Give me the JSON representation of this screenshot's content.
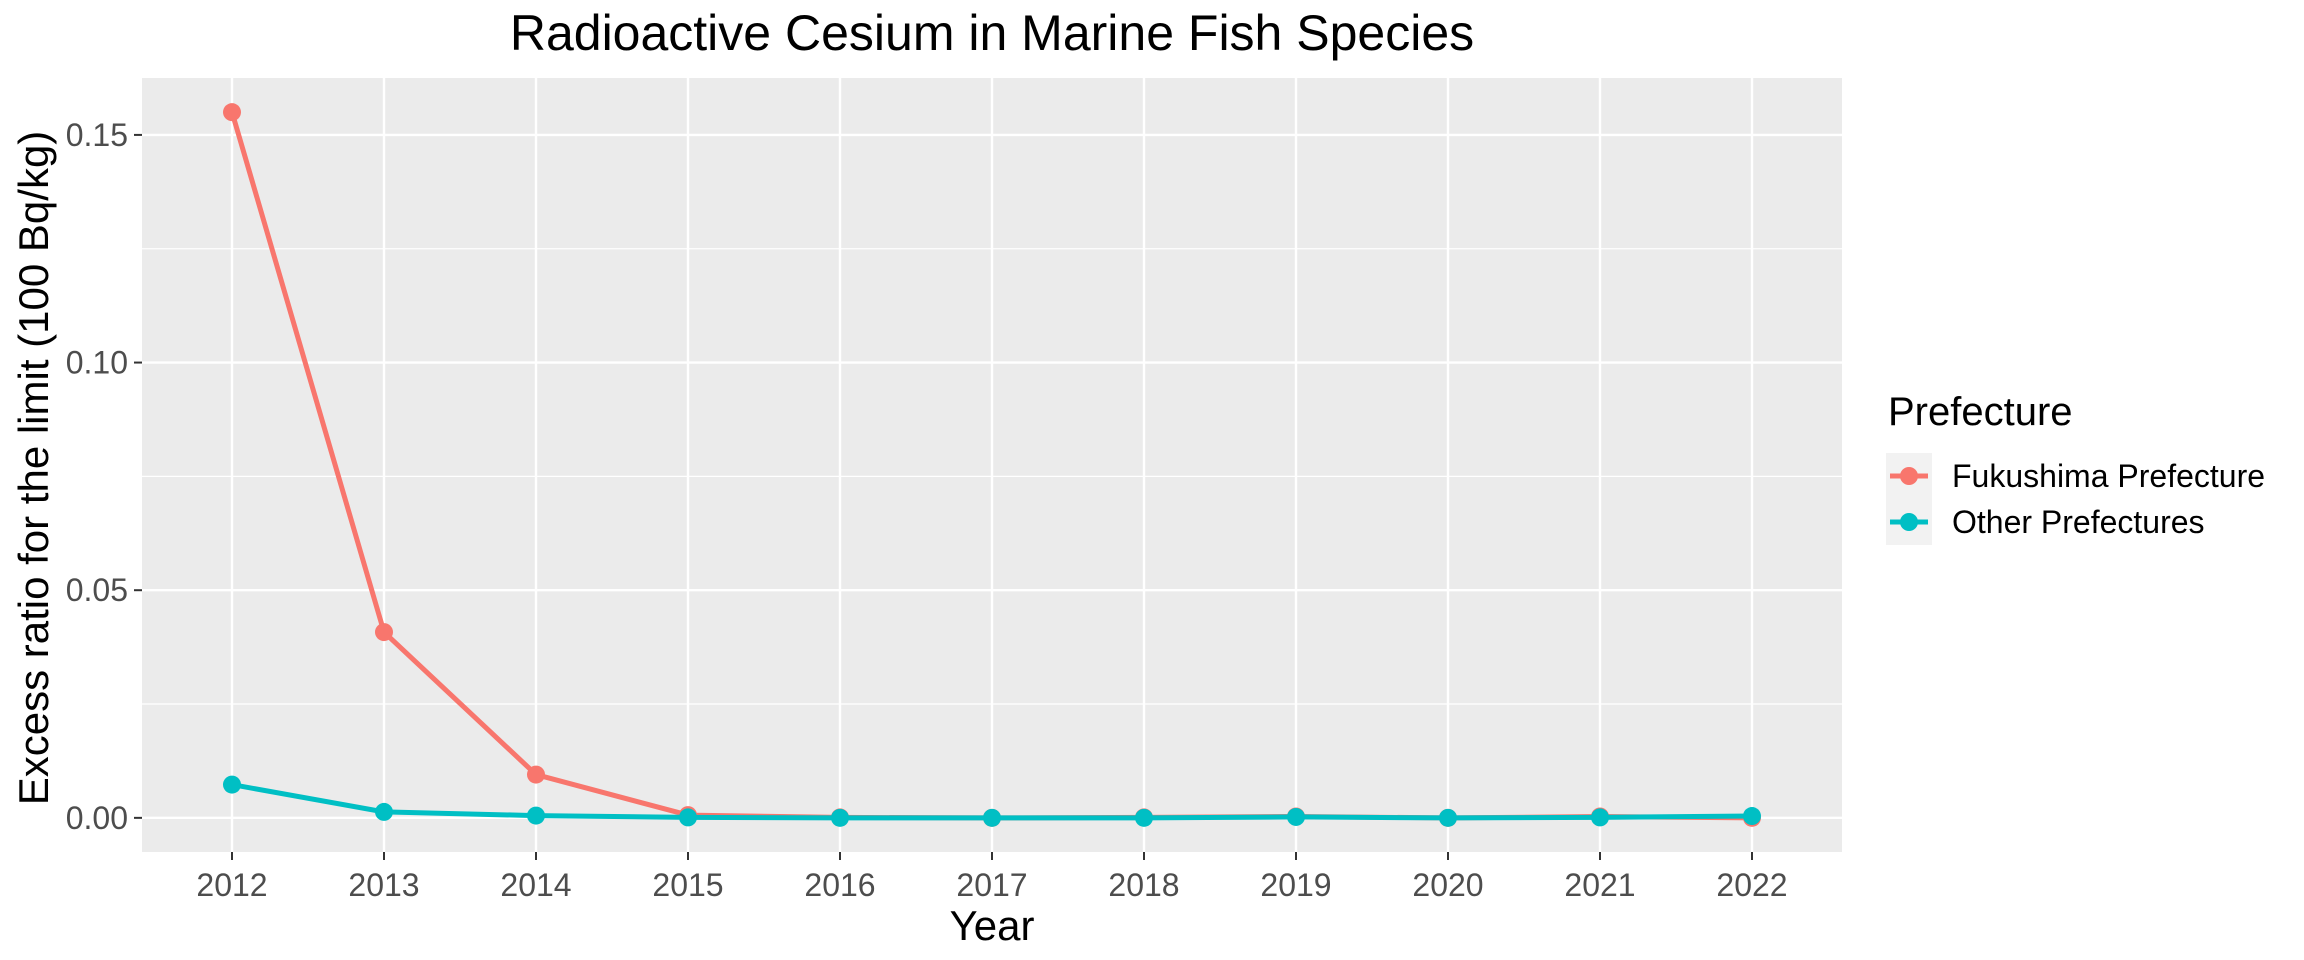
{
  "chart_data": {
    "type": "line",
    "title": "Radioactive Cesium in Marine Fish Species",
    "xlabel": "Year",
    "ylabel": "Excess ratio for the limit (100 Bq/kg)",
    "categories": [
      "2012",
      "2013",
      "2014",
      "2015",
      "2016",
      "2017",
      "2018",
      "2019",
      "2020",
      "2021",
      "2022"
    ],
    "y_ticks": [
      0.0,
      0.05,
      0.1,
      0.15
    ],
    "y_tick_labels": [
      "0.00",
      "0.05",
      "0.10",
      "0.15"
    ],
    "ylim": [
      -0.0075,
      0.1625
    ],
    "grid": true,
    "legend_position": "right",
    "legend_title": "Prefecture",
    "series": [
      {
        "name": "Fukushima Prefecture",
        "color": "#F8766D",
        "values": [
          0.155,
          0.0408,
          0.0095,
          0.0006,
          0.0001,
          0.0,
          0.0001,
          0.0003,
          0.0,
          0.0003,
          0.0
        ]
      },
      {
        "name": "Other Prefectures",
        "color": "#00BFC4",
        "values": [
          0.0073,
          0.0013,
          0.0005,
          0.0001,
          0.0,
          0.0,
          0.0,
          0.0002,
          0.0,
          0.0001,
          0.0004
        ]
      }
    ]
  }
}
